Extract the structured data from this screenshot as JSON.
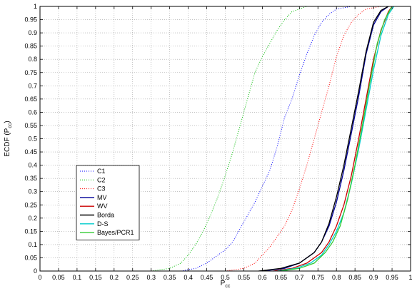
{
  "chart_data": {
    "type": "line",
    "title": "",
    "xlabel": "P",
    "xlabel_sub": "cc",
    "ylabel": "ECDF (P",
    "ylabel_sub": "cc",
    "ylabel_close": ")",
    "xlim": [
      0,
      1
    ],
    "ylim": [
      0,
      1
    ],
    "x_ticks": [
      "0",
      "0.05",
      "0.1",
      "0.15",
      "0.2",
      "0.25",
      "0.3",
      "0.35",
      "0.4",
      "0.45",
      "0.5",
      "0.55",
      "0.6",
      "0.65",
      "0.7",
      "0.75",
      "0.8",
      "0.85",
      "0.9",
      "0.95",
      "1"
    ],
    "y_ticks": [
      "0",
      "0.05",
      "0.1",
      "0.15",
      "0.2",
      "0.25",
      "0.3",
      "0.35",
      "0.4",
      "0.45",
      "0.5",
      "0.55",
      "0.6",
      "0.65",
      "0.7",
      "0.75",
      "0.8",
      "0.85",
      "0.9",
      "0.95",
      "1"
    ],
    "grid": true,
    "legend_position": "lower-left",
    "series": [
      {
        "name": "C1",
        "color": "#0000ff",
        "style": "dotted",
        "x": [
          0.38,
          0.42,
          0.45,
          0.48,
          0.5,
          0.52,
          0.54,
          0.56,
          0.58,
          0.6,
          0.62,
          0.64,
          0.66,
          0.68,
          0.7,
          0.72,
          0.74,
          0.76,
          0.78,
          0.8,
          0.82,
          0.84
        ],
        "y": [
          0,
          0.01,
          0.03,
          0.06,
          0.08,
          0.11,
          0.16,
          0.21,
          0.26,
          0.32,
          0.38,
          0.47,
          0.58,
          0.65,
          0.74,
          0.82,
          0.89,
          0.94,
          0.97,
          0.99,
          0.995,
          1.0
        ]
      },
      {
        "name": "C2",
        "color": "#00bb00",
        "style": "dotted",
        "x": [
          0.3,
          0.35,
          0.38,
          0.4,
          0.42,
          0.44,
          0.46,
          0.48,
          0.5,
          0.52,
          0.54,
          0.56,
          0.58,
          0.6,
          0.62,
          0.64,
          0.66,
          0.68,
          0.7,
          0.72
        ],
        "y": [
          0,
          0.01,
          0.03,
          0.06,
          0.1,
          0.15,
          0.21,
          0.28,
          0.36,
          0.45,
          0.55,
          0.65,
          0.75,
          0.81,
          0.86,
          0.91,
          0.95,
          0.98,
          0.99,
          1.0
        ]
      },
      {
        "name": "C3",
        "color": "#ff0000",
        "style": "dotted",
        "x": [
          0.5,
          0.55,
          0.58,
          0.6,
          0.62,
          0.64,
          0.66,
          0.68,
          0.7,
          0.72,
          0.74,
          0.76,
          0.78,
          0.8,
          0.82,
          0.84,
          0.86,
          0.88,
          0.9,
          0.92
        ],
        "y": [
          0,
          0.01,
          0.03,
          0.06,
          0.09,
          0.13,
          0.17,
          0.23,
          0.31,
          0.4,
          0.5,
          0.6,
          0.7,
          0.81,
          0.89,
          0.94,
          0.97,
          0.99,
          0.995,
          1.0
        ]
      },
      {
        "name": "MV",
        "color": "#000099",
        "style": "solid",
        "x": [
          0.6,
          0.66,
          0.7,
          0.74,
          0.76,
          0.78,
          0.8,
          0.82,
          0.84,
          0.86,
          0.88,
          0.9,
          0.92,
          0.94
        ],
        "y": [
          0,
          0.01,
          0.03,
          0.07,
          0.11,
          0.17,
          0.26,
          0.38,
          0.52,
          0.66,
          0.82,
          0.93,
          0.98,
          1.0
        ]
      },
      {
        "name": "WV",
        "color": "#cc0000",
        "style": "solid",
        "x": [
          0.63,
          0.68,
          0.72,
          0.76,
          0.78,
          0.8,
          0.82,
          0.84,
          0.86,
          0.88,
          0.9,
          0.92,
          0.94,
          0.95
        ],
        "y": [
          0,
          0.01,
          0.03,
          0.07,
          0.11,
          0.17,
          0.25,
          0.36,
          0.5,
          0.65,
          0.8,
          0.91,
          0.98,
          1.0
        ]
      },
      {
        "name": "Borda",
        "color": "#000000",
        "style": "solid",
        "x": [
          0.59,
          0.65,
          0.7,
          0.74,
          0.76,
          0.78,
          0.8,
          0.82,
          0.84,
          0.86,
          0.88,
          0.9,
          0.92,
          0.94
        ],
        "y": [
          0,
          0.01,
          0.03,
          0.07,
          0.11,
          0.18,
          0.28,
          0.4,
          0.54,
          0.68,
          0.83,
          0.94,
          0.985,
          1.0
        ]
      },
      {
        "name": "D-S",
        "color": "#00cccc",
        "style": "solid",
        "x": [
          0.64,
          0.69,
          0.73,
          0.76,
          0.78,
          0.8,
          0.82,
          0.84,
          0.86,
          0.88,
          0.9,
          0.92,
          0.94,
          0.955
        ],
        "y": [
          0,
          0.01,
          0.03,
          0.06,
          0.1,
          0.15,
          0.22,
          0.33,
          0.46,
          0.61,
          0.76,
          0.89,
          0.97,
          1.0
        ]
      },
      {
        "name": "Bayes/PCR1",
        "color": "#33cc33",
        "style": "solid",
        "x": [
          0.65,
          0.7,
          0.74,
          0.77,
          0.79,
          0.81,
          0.83,
          0.85,
          0.87,
          0.89,
          0.91,
          0.93,
          0.95
        ],
        "y": [
          0,
          0.01,
          0.03,
          0.07,
          0.11,
          0.17,
          0.27,
          0.4,
          0.55,
          0.71,
          0.86,
          0.95,
          1.0
        ]
      }
    ]
  }
}
